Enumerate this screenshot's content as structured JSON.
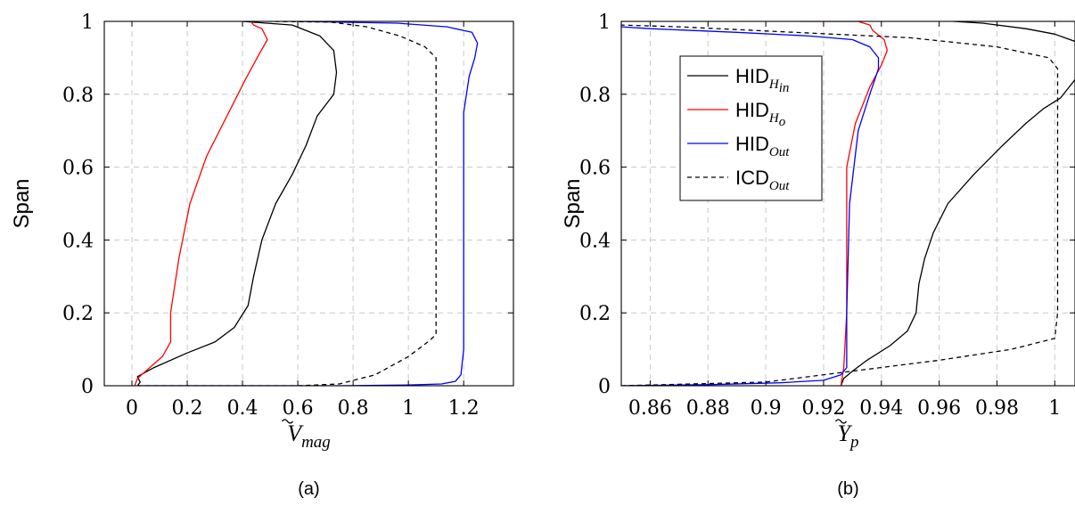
{
  "chart_data": [
    {
      "type": "line",
      "caption": "(a)",
      "xlabel": "Ṽmag",
      "xlabel_main": "V",
      "xlabel_sub": "mag",
      "ylabel": "Span",
      "xlim": [
        -0.1,
        1.38
      ],
      "ylim": [
        0,
        1
      ],
      "xticks": [
        0,
        0.2,
        0.4,
        0.6,
        0.8,
        1,
        1.2
      ],
      "xtick_labels": [
        "0",
        "0.2",
        "0.4",
        "0.6",
        "0.8",
        "1",
        "1.2"
      ],
      "yticks": [
        0,
        0.2,
        0.4,
        0.6,
        0.8,
        1
      ],
      "ytick_labels": [
        "0",
        "0.2",
        "0.4",
        "0.6",
        "0.8",
        "1"
      ],
      "grid": true,
      "series": [
        {
          "key": "hid_hin",
          "color": "#000000",
          "dash": false,
          "points": [
            [
              0.02,
              0
            ],
            [
              0.03,
              0.01
            ],
            [
              0.02,
              0.025
            ],
            [
              0.08,
              0.05
            ],
            [
              0.2,
              0.09
            ],
            [
              0.3,
              0.12
            ],
            [
              0.37,
              0.16
            ],
            [
              0.42,
              0.22
            ],
            [
              0.44,
              0.3
            ],
            [
              0.47,
              0.4
            ],
            [
              0.52,
              0.5
            ],
            [
              0.58,
              0.58
            ],
            [
              0.63,
              0.66
            ],
            [
              0.67,
              0.74
            ],
            [
              0.71,
              0.78
            ],
            [
              0.73,
              0.8
            ],
            [
              0.74,
              0.86
            ],
            [
              0.73,
              0.92
            ],
            [
              0.68,
              0.96
            ],
            [
              0.58,
              0.99
            ],
            [
              0.4,
              1
            ]
          ]
        },
        {
          "key": "hid_ho",
          "color": "#ff0000",
          "dash": false,
          "points": [
            [
              0.01,
              0
            ],
            [
              0.02,
              0.02
            ],
            [
              0.05,
              0.04
            ],
            [
              0.11,
              0.08
            ],
            [
              0.14,
              0.12
            ],
            [
              0.14,
              0.2
            ],
            [
              0.17,
              0.35
            ],
            [
              0.21,
              0.5
            ],
            [
              0.27,
              0.63
            ],
            [
              0.35,
              0.75
            ],
            [
              0.41,
              0.84
            ],
            [
              0.46,
              0.91
            ],
            [
              0.49,
              0.95
            ],
            [
              0.47,
              0.98
            ],
            [
              0.44,
              0.99
            ],
            [
              0.43,
              1
            ]
          ]
        },
        {
          "key": "hid_out",
          "color": "#0000ff",
          "dash": false,
          "points": [
            [
              0.02,
              0
            ],
            [
              0.75,
              0
            ],
            [
              1.0,
              0.002
            ],
            [
              1.12,
              0.005
            ],
            [
              1.17,
              0.012
            ],
            [
              1.19,
              0.03
            ],
            [
              1.2,
              0.1
            ],
            [
              1.2,
              0.5
            ],
            [
              1.2,
              0.75
            ],
            [
              1.22,
              0.85
            ],
            [
              1.24,
              0.9
            ],
            [
              1.25,
              0.94
            ],
            [
              1.23,
              0.97
            ],
            [
              1.14,
              0.985
            ],
            [
              0.96,
              0.995
            ],
            [
              0.6,
              1
            ]
          ]
        },
        {
          "key": "icd_out",
          "color": "#000000",
          "dash": true,
          "points": [
            [
              0.02,
              0
            ],
            [
              0.6,
              0
            ],
            [
              0.75,
              0.005
            ],
            [
              0.88,
              0.03
            ],
            [
              1.0,
              0.08
            ],
            [
              1.07,
              0.12
            ],
            [
              1.1,
              0.14
            ],
            [
              1.1,
              0.6
            ],
            [
              1.1,
              0.9
            ],
            [
              1.06,
              0.93
            ],
            [
              0.97,
              0.96
            ],
            [
              0.85,
              0.985
            ],
            [
              0.72,
              0.998
            ],
            [
              0.5,
              1
            ]
          ]
        }
      ]
    },
    {
      "type": "line",
      "caption": "(b)",
      "xlabel": "Ỹp",
      "xlabel_main": "Y",
      "xlabel_sub": "p",
      "ylabel": "Span",
      "xlim": [
        0.85,
        1.007
      ],
      "ylim": [
        0,
        1
      ],
      "xticks": [
        0.86,
        0.88,
        0.9,
        0.92,
        0.94,
        0.96,
        0.98,
        1
      ],
      "xtick_labels": [
        "0.86",
        "0.88",
        "0.9",
        "0.92",
        "0.94",
        "0.96",
        "0.98",
        "1"
      ],
      "yticks": [
        0,
        0.2,
        0.4,
        0.6,
        0.8,
        1
      ],
      "ytick_labels": [
        "0",
        "0.2",
        "0.4",
        "0.6",
        "0.8",
        "1"
      ],
      "grid": true,
      "legend": {
        "position": "top-left-inside",
        "entries": [
          {
            "key": "hid_hin",
            "main": "HID",
            "sub": "H",
            "subsub": "in"
          },
          {
            "key": "hid_ho",
            "main": "HID",
            "sub": "H",
            "subsub": "o"
          },
          {
            "key": "hid_out",
            "main": "HID",
            "sub": "Out",
            "subsub": ""
          },
          {
            "key": "icd_out",
            "main": "ICD",
            "sub": "Out",
            "subsub": ""
          }
        ]
      },
      "series": [
        {
          "key": "hid_hin",
          "color": "#000000",
          "dash": false,
          "points": [
            [
              0.926,
              0
            ],
            [
              0.927,
              0.02
            ],
            [
              0.93,
              0.04
            ],
            [
              0.935,
              0.07
            ],
            [
              0.943,
              0.11
            ],
            [
              0.949,
              0.15
            ],
            [
              0.952,
              0.2
            ],
            [
              0.953,
              0.28
            ],
            [
              0.955,
              0.35
            ],
            [
              0.958,
              0.42
            ],
            [
              0.963,
              0.5
            ],
            [
              0.972,
              0.58
            ],
            [
              0.982,
              0.66
            ],
            [
              0.99,
              0.72
            ],
            [
              0.996,
              0.76
            ],
            [
              1.002,
              0.79
            ],
            [
              1.005,
              0.82
            ],
            [
              1.007,
              0.84
            ]
          ]
        },
        {
          "key": "hid_hin_top",
          "color": "#000000",
          "dash": false,
          "points": [
            [
              0.965,
              1
            ],
            [
              0.975,
              0.995
            ],
            [
              0.99,
              0.98
            ],
            [
              1.0,
              0.965
            ],
            [
              1.007,
              0.945
            ]
          ]
        },
        {
          "key": "hid_ho",
          "color": "#ff0000",
          "dash": false,
          "points": [
            [
              0.926,
              0
            ],
            [
              0.927,
              0.05
            ],
            [
              0.928,
              0.2
            ],
            [
              0.928,
              0.4
            ],
            [
              0.928,
              0.6
            ],
            [
              0.931,
              0.72
            ],
            [
              0.936,
              0.82
            ],
            [
              0.94,
              0.88
            ],
            [
              0.942,
              0.92
            ],
            [
              0.941,
              0.95
            ],
            [
              0.937,
              0.975
            ],
            [
              0.936,
              0.99
            ],
            [
              0.932,
              1
            ],
            [
              0.912,
              1
            ]
          ]
        },
        {
          "key": "hid_out",
          "color": "#0000ff",
          "dash": false,
          "points": [
            [
              0.85,
              0
            ],
            [
              0.88,
              0.003
            ],
            [
              0.905,
              0.008
            ],
            [
              0.92,
              0.015
            ],
            [
              0.926,
              0.03
            ],
            [
              0.928,
              0.05
            ],
            [
              0.928,
              0.2
            ],
            [
              0.929,
              0.5
            ],
            [
              0.932,
              0.7
            ],
            [
              0.936,
              0.8
            ],
            [
              0.939,
              0.87
            ],
            [
              0.939,
              0.9
            ],
            [
              0.936,
              0.93
            ],
            [
              0.93,
              0.95
            ],
            [
              0.915,
              0.96
            ],
            [
              0.89,
              0.97
            ],
            [
              0.86,
              0.98
            ],
            [
              0.85,
              0.985
            ]
          ]
        },
        {
          "key": "icd_out",
          "color": "#000000",
          "dash": true,
          "points": [
            [
              0.85,
              0
            ],
            [
              0.9,
              0.01
            ],
            [
              0.93,
              0.04
            ],
            [
              0.96,
              0.07
            ],
            [
              0.985,
              0.1
            ],
            [
              1.0,
              0.13
            ],
            [
              1.001,
              0.2
            ],
            [
              1.001,
              0.6
            ],
            [
              1.001,
              0.87
            ],
            [
              0.998,
              0.9
            ],
            [
              0.98,
              0.93
            ],
            [
              0.95,
              0.955
            ],
            [
              0.91,
              0.97
            ],
            [
              0.87,
              0.985
            ],
            [
              0.85,
              0.99
            ]
          ]
        }
      ]
    }
  ],
  "legend_colors": {
    "hid_hin": "#000000",
    "hid_ho": "#ff0000",
    "hid_out": "#0000ff",
    "icd_out": "#000000"
  },
  "grid_color": "#c8c8c8"
}
